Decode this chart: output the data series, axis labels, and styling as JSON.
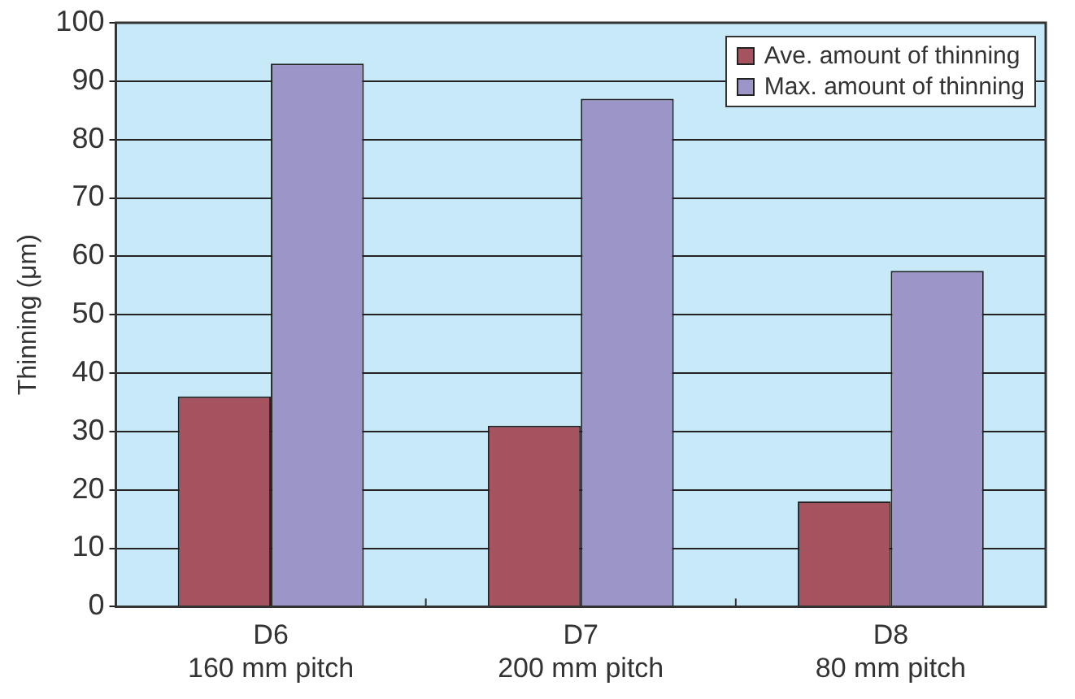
{
  "chart_data": {
    "type": "bar",
    "ylabel": "Thinning (μm)",
    "categories": [
      "D6\n160 mm pitch",
      "D7\n200 mm pitch",
      "D8\n80 mm pitch"
    ],
    "series": [
      {
        "name": "Ave. amount of thinning",
        "color": "#a5535e",
        "values": [
          36,
          31,
          18
        ]
      },
      {
        "name": "Max. amount of thinning",
        "color": "#9b95c8",
        "values": [
          93,
          87,
          57.5
        ]
      }
    ],
    "ylim": [
      0,
      100
    ],
    "yticks": [
      0,
      10,
      20,
      30,
      40,
      50,
      60,
      70,
      80,
      90,
      100
    ],
    "grid": "y",
    "legend": "top right"
  }
}
